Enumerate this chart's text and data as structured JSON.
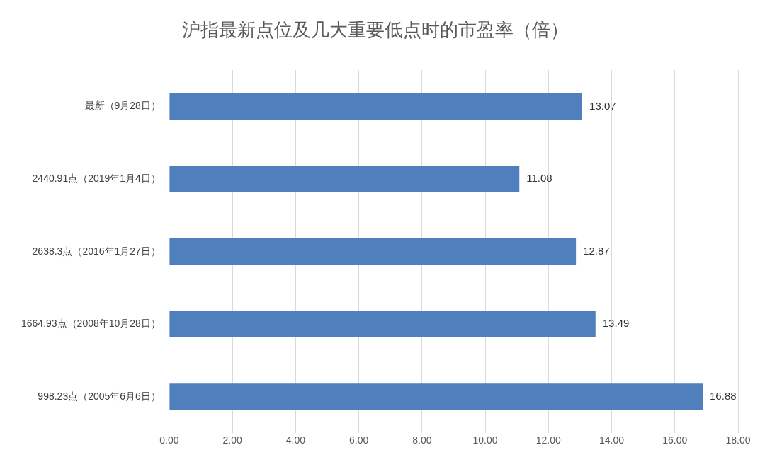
{
  "chart_data": {
    "type": "bar",
    "orientation": "horizontal",
    "title": "沪指最新点位及几大重要低点时的市盈率（倍）",
    "categories": [
      "最新（9月28日）",
      "2440.91点（2019年1月4日）",
      "2638.3点（2016年1月27日）",
      "1664.93点（2008年10月28日）",
      "998.23点（2005年6月6日）"
    ],
    "values": [
      13.07,
      11.08,
      12.87,
      13.49,
      16.88
    ],
    "color": "#4f7fbd",
    "xlim": [
      0,
      18
    ],
    "xticks": [
      {
        "value": 0,
        "label": "0.00"
      },
      {
        "value": 2,
        "label": "2.00"
      },
      {
        "value": 4,
        "label": "4.00"
      },
      {
        "value": 6,
        "label": "6.00"
      },
      {
        "value": 8,
        "label": "8.00"
      },
      {
        "value": 10,
        "label": "10.00"
      },
      {
        "value": 12,
        "label": "12.00"
      },
      {
        "value": 14,
        "label": "14.00"
      },
      {
        "value": 16,
        "label": "16.00"
      },
      {
        "value": 18,
        "label": "18.00"
      }
    ],
    "grid": "x",
    "data_labels": true
  }
}
